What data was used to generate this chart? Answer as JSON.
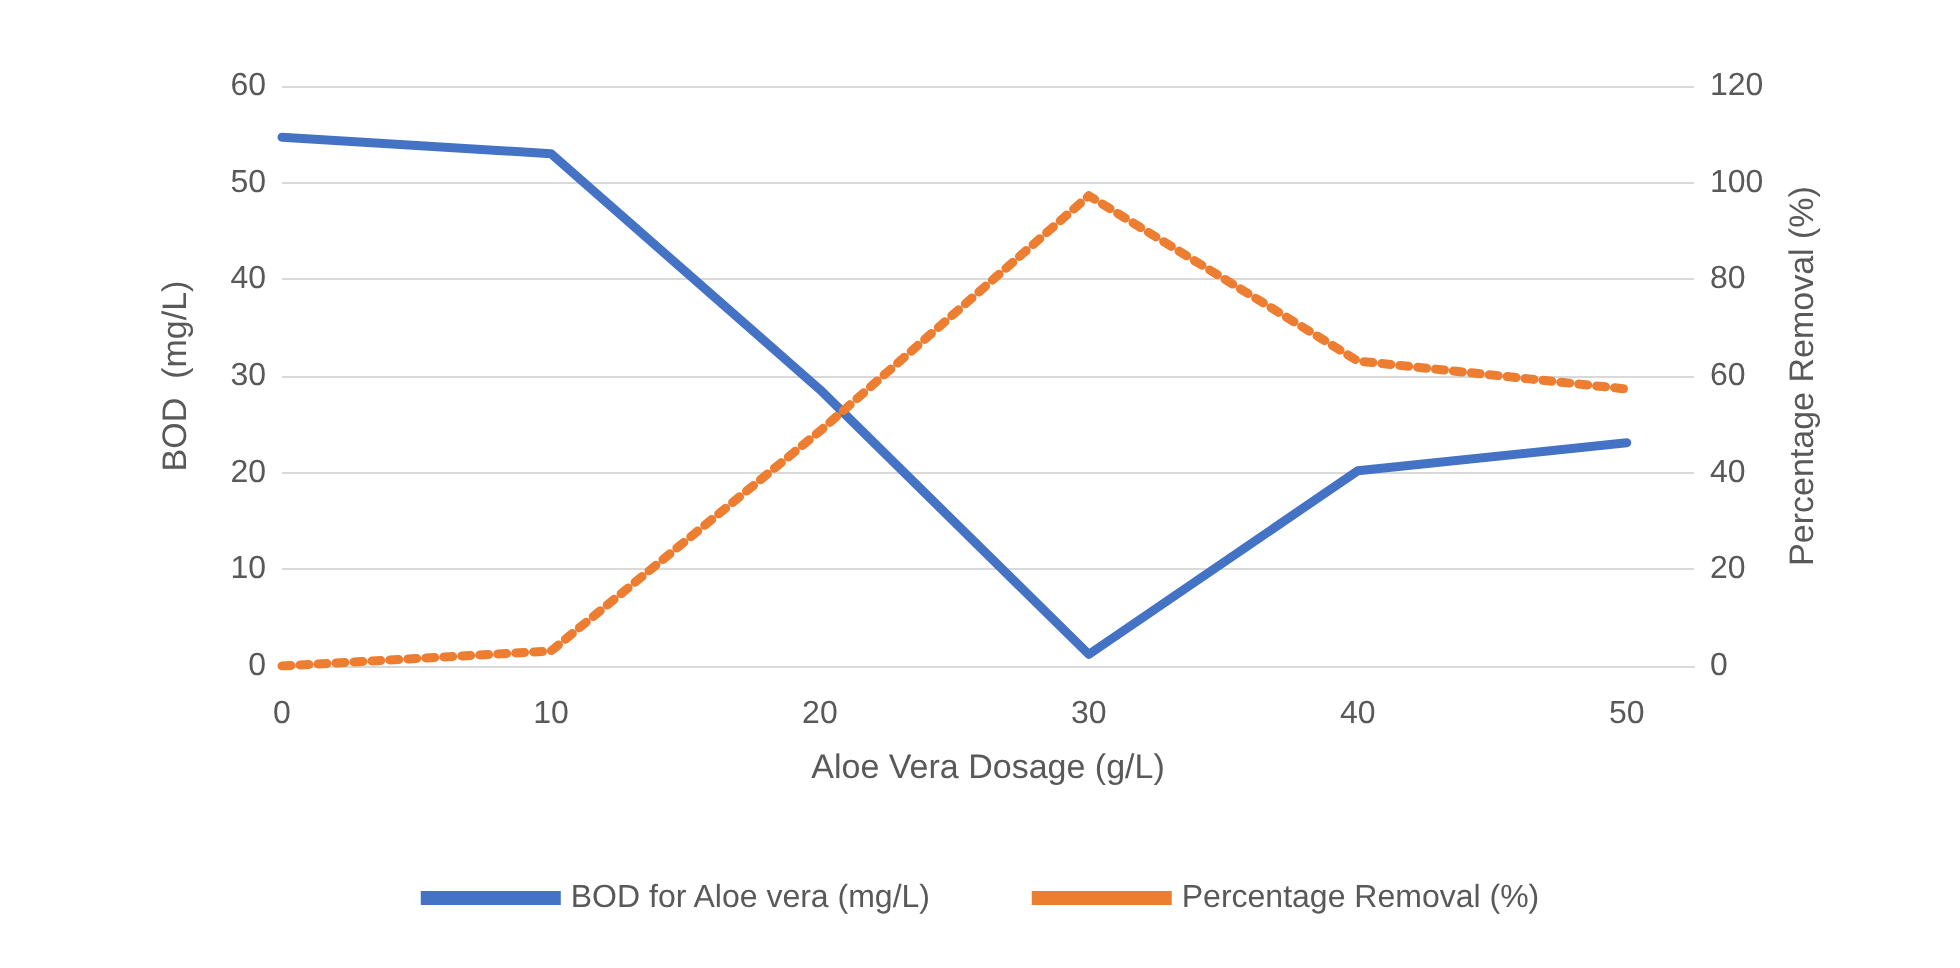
{
  "chart_data": {
    "type": "line",
    "xlabel": "Aloe Vera Dosage (g/L)",
    "ylabel": "BOD  (mg/L)",
    "y2label": "Percentage Removal (%)",
    "x": [
      0,
      10,
      20,
      30,
      40,
      50
    ],
    "xlim": [
      0,
      52.5
    ],
    "xticks": [
      0,
      10,
      20,
      30,
      40,
      50
    ],
    "ylim": [
      0,
      60
    ],
    "yticks": [
      0,
      10,
      20,
      30,
      40,
      50,
      60
    ],
    "y2lim": [
      0,
      120
    ],
    "y2ticks": [
      0,
      20,
      40,
      60,
      80,
      100,
      120
    ],
    "series": [
      {
        "name": "BOD for Aloe vera (mg/L)",
        "color": "#4472c4",
        "line_style": "solid",
        "values": [
          54.7,
          53,
          28.6,
          1.2,
          20.2,
          23.1
        ]
      },
      {
        "name": "Percentage Removal (%)",
        "color": "#ed7d31",
        "line_style": "dotted",
        "axis": "y2",
        "values": [
          0,
          3.1,
          48.6,
          97.3,
          63.1,
          57.3
        ]
      }
    ],
    "grid": "y",
    "legend": "bottom",
    "marker": "none"
  }
}
